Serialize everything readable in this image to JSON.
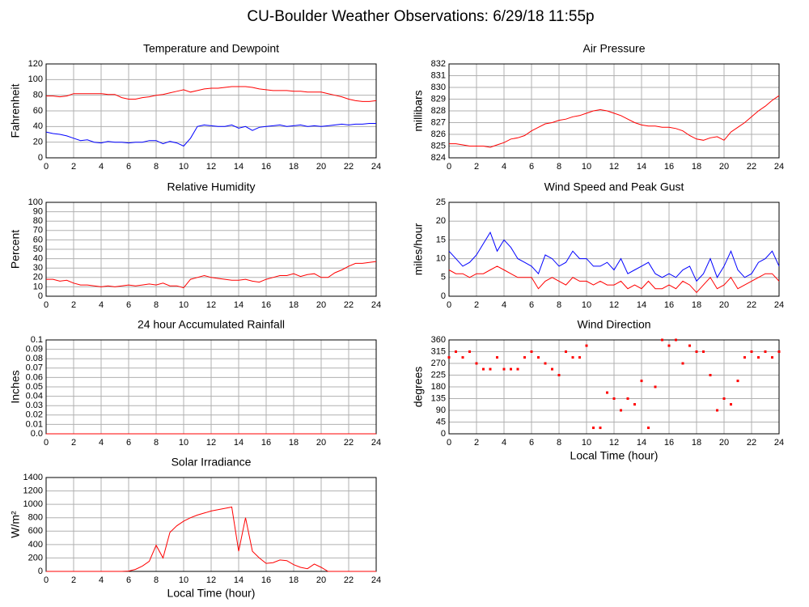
{
  "title": "CU-Boulder Weather Observations: 6/29/18 11:55p",
  "chart_data": [
    {
      "type": "line",
      "title": "Temperature and Dewpoint",
      "ylabel": "Fahrenheit",
      "x": [
        0,
        0.5,
        1,
        1.5,
        2,
        2.5,
        3,
        3.5,
        4,
        4.5,
        5,
        5.5,
        6,
        6.5,
        7,
        7.5,
        8,
        8.5,
        9,
        9.5,
        10,
        10.5,
        11,
        11.5,
        12,
        12.5,
        13,
        13.5,
        14,
        14.5,
        15,
        15.5,
        16,
        16.5,
        17,
        17.5,
        18,
        18.5,
        19,
        19.5,
        20,
        20.5,
        21,
        21.5,
        22,
        22.5,
        23,
        23.5,
        24
      ],
      "xlim": [
        0,
        24
      ],
      "xticks": [
        0,
        2,
        4,
        6,
        8,
        10,
        12,
        14,
        16,
        18,
        20,
        22,
        24
      ],
      "ylim": [
        0,
        120
      ],
      "yticks": [
        0,
        20,
        40,
        60,
        80,
        100,
        120
      ],
      "grid": true,
      "series": [
        {
          "color": "#ff0000",
          "values": [
            79,
            79,
            78,
            79,
            82,
            82,
            82,
            82,
            82,
            81,
            81,
            77,
            75,
            75,
            77,
            78,
            80,
            81,
            83,
            85,
            87,
            84,
            86,
            88,
            89,
            89,
            90,
            91,
            91,
            91,
            90,
            88,
            87,
            86,
            86,
            86,
            85,
            85,
            84,
            84,
            84,
            82,
            80,
            78,
            75,
            73,
            72,
            72,
            73
          ]
        },
        {
          "color": "#0000ff",
          "values": [
            33,
            31,
            30,
            28,
            25,
            22,
            23,
            20,
            19,
            21,
            20,
            20,
            19,
            20,
            20,
            22,
            22,
            18,
            21,
            19,
            15,
            25,
            40,
            42,
            41,
            40,
            40,
            42,
            38,
            40,
            35,
            39,
            40,
            41,
            42,
            40,
            41,
            42,
            40,
            41,
            40,
            41,
            42,
            43,
            42,
            43,
            43,
            44,
            44
          ]
        }
      ]
    },
    {
      "type": "line",
      "title": "Air Pressure",
      "ylabel": "millibars",
      "x": [
        0,
        0.5,
        1,
        1.5,
        2,
        2.5,
        3,
        3.5,
        4,
        4.5,
        5,
        5.5,
        6,
        6.5,
        7,
        7.5,
        8,
        8.5,
        9,
        9.5,
        10,
        10.5,
        11,
        11.5,
        12,
        12.5,
        13,
        13.5,
        14,
        14.5,
        15,
        15.5,
        16,
        16.5,
        17,
        17.5,
        18,
        18.5,
        19,
        19.5,
        20,
        20.5,
        21,
        21.5,
        22,
        22.5,
        23,
        23.5,
        24
      ],
      "xlim": [
        0,
        24
      ],
      "xticks": [
        0,
        2,
        4,
        6,
        8,
        10,
        12,
        14,
        16,
        18,
        20,
        22,
        24
      ],
      "ylim": [
        824,
        832
      ],
      "yticks": [
        824,
        825,
        826,
        827,
        828,
        829,
        830,
        831,
        832
      ],
      "grid": true,
      "series": [
        {
          "color": "#ff0000",
          "values": [
            825.2,
            825.2,
            825.1,
            825.0,
            825.0,
            825.0,
            824.9,
            825.1,
            825.3,
            825.6,
            825.7,
            825.9,
            826.3,
            826.6,
            826.9,
            827.0,
            827.2,
            827.3,
            827.5,
            827.6,
            827.8,
            828.0,
            828.1,
            828.0,
            827.8,
            827.6,
            827.3,
            827.0,
            826.8,
            826.7,
            826.7,
            826.6,
            826.6,
            826.5,
            826.3,
            825.9,
            825.6,
            825.5,
            825.7,
            825.8,
            825.5,
            826.2,
            826.6,
            827.0,
            827.5,
            828.0,
            828.4,
            828.9,
            829.3
          ]
        }
      ]
    },
    {
      "type": "line",
      "title": "Relative Humidity",
      "ylabel": "Percent",
      "x": [
        0,
        0.5,
        1,
        1.5,
        2,
        2.5,
        3,
        3.5,
        4,
        4.5,
        5,
        5.5,
        6,
        6.5,
        7,
        7.5,
        8,
        8.5,
        9,
        9.5,
        10,
        10.5,
        11,
        11.5,
        12,
        12.5,
        13,
        13.5,
        14,
        14.5,
        15,
        15.5,
        16,
        16.5,
        17,
        17.5,
        18,
        18.5,
        19,
        19.5,
        20,
        20.5,
        21,
        21.5,
        22,
        22.5,
        23,
        23.5,
        24
      ],
      "xlim": [
        0,
        24
      ],
      "xticks": [
        0,
        2,
        4,
        6,
        8,
        10,
        12,
        14,
        16,
        18,
        20,
        22,
        24
      ],
      "ylim": [
        0,
        100
      ],
      "yticks": [
        0,
        10,
        20,
        30,
        40,
        50,
        60,
        70,
        80,
        90,
        100
      ],
      "grid": true,
      "series": [
        {
          "color": "#ff0000",
          "values": [
            18,
            18,
            16,
            17,
            14,
            12,
            12,
            11,
            10,
            11,
            10,
            11,
            12,
            11,
            12,
            13,
            12,
            14,
            11,
            11,
            9,
            18,
            20,
            22,
            20,
            19,
            18,
            17,
            17,
            18,
            16,
            15,
            18,
            20,
            22,
            22,
            24,
            21,
            23,
            24,
            20,
            20,
            25,
            28,
            32,
            35,
            35,
            36,
            37
          ]
        }
      ]
    },
    {
      "type": "line",
      "title": "Wind Speed and Peak Gust",
      "ylabel": "miles/hour",
      "x": [
        0,
        0.5,
        1,
        1.5,
        2,
        2.5,
        3,
        3.5,
        4,
        4.5,
        5,
        5.5,
        6,
        6.5,
        7,
        7.5,
        8,
        8.5,
        9,
        9.5,
        10,
        10.5,
        11,
        11.5,
        12,
        12.5,
        13,
        13.5,
        14,
        14.5,
        15,
        15.5,
        16,
        16.5,
        17,
        17.5,
        18,
        18.5,
        19,
        19.5,
        20,
        20.5,
        21,
        21.5,
        22,
        22.5,
        23,
        23.5,
        24
      ],
      "xlim": [
        0,
        24
      ],
      "xticks": [
        0,
        2,
        4,
        6,
        8,
        10,
        12,
        14,
        16,
        18,
        20,
        22,
        24
      ],
      "ylim": [
        0,
        25
      ],
      "yticks": [
        0,
        5,
        10,
        15,
        20,
        25
      ],
      "grid": true,
      "series": [
        {
          "color": "#0000ff",
          "values": [
            12,
            10,
            8,
            9,
            11,
            14,
            17,
            12,
            15,
            13,
            10,
            9,
            8,
            6,
            11,
            10,
            8,
            9,
            12,
            10,
            10,
            8,
            8,
            9,
            7,
            10,
            6,
            7,
            8,
            9,
            6,
            5,
            6,
            5,
            7,
            8,
            4,
            6,
            10,
            5,
            8,
            12,
            7,
            5,
            6,
            9,
            10,
            12,
            8
          ]
        },
        {
          "color": "#ff0000",
          "values": [
            7,
            6,
            6,
            5,
            6,
            6,
            7,
            8,
            7,
            6,
            5,
            5,
            5,
            2,
            4,
            5,
            4,
            3,
            5,
            4,
            4,
            3,
            4,
            3,
            3,
            4,
            2,
            3,
            2,
            4,
            2,
            2,
            3,
            2,
            4,
            3,
            1,
            3,
            5,
            2,
            3,
            5,
            2,
            3,
            4,
            5,
            6,
            6,
            4
          ]
        }
      ]
    },
    {
      "type": "line",
      "title": "24 hour Accumulated Rainfall",
      "ylabel": "Inches",
      "x": [
        0,
        24
      ],
      "xlim": [
        0,
        24
      ],
      "xticks": [
        0,
        2,
        4,
        6,
        8,
        10,
        12,
        14,
        16,
        18,
        20,
        22,
        24
      ],
      "ylim": [
        0,
        0.1
      ],
      "yticks": [
        {
          "value": 0,
          "label": "0.0"
        },
        0.01,
        0.02,
        0.03,
        0.04,
        0.05,
        0.06,
        0.07,
        0.08,
        0.09,
        0.1
      ],
      "grid": true,
      "series": [
        {
          "color": "#ff0000",
          "values": [
            0,
            0
          ]
        }
      ]
    },
    {
      "type": "scatter",
      "title": "Wind Direction",
      "ylabel": "degrees",
      "xlabel": "Local Time (hour)",
      "x": [
        0,
        0.5,
        1,
        1.5,
        2,
        2.5,
        3,
        3.5,
        4,
        4.5,
        5,
        5.5,
        6,
        6.5,
        7,
        7.5,
        8,
        8.5,
        9,
        9.5,
        10,
        10.5,
        11,
        11.5,
        12,
        12.5,
        13,
        13.5,
        14,
        14.5,
        15,
        15.5,
        16,
        16.5,
        17,
        17.5,
        18,
        18.5,
        19,
        19.5,
        20,
        20.5,
        21,
        21.5,
        22,
        22.5,
        23,
        23.5,
        24
      ],
      "xlim": [
        0,
        24
      ],
      "xticks": [
        0,
        2,
        4,
        6,
        8,
        10,
        12,
        14,
        16,
        18,
        20,
        22,
        24
      ],
      "ylim": [
        0,
        360
      ],
      "yticks": [
        0,
        45,
        90,
        135,
        180,
        225,
        270,
        315,
        360
      ],
      "grid": true,
      "series": [
        {
          "color": "#ff0000",
          "values": [
            293,
            315,
            293,
            315,
            270,
            248,
            248,
            293,
            248,
            248,
            248,
            293,
            315,
            293,
            270,
            248,
            225,
            315,
            293,
            293,
            338,
            23,
            23,
            158,
            135,
            90,
            135,
            113,
            203,
            23,
            180,
            360,
            338,
            360,
            270,
            338,
            315,
            315,
            225,
            90,
            135,
            113,
            203,
            293,
            315,
            293,
            315,
            293,
            315
          ]
        }
      ]
    },
    {
      "type": "line",
      "title": "Solar Irradiance",
      "ylabel": "W/m²",
      "xlabel": "Local Time (hour)",
      "x": [
        0,
        0.5,
        1,
        1.5,
        2,
        2.5,
        3,
        3.5,
        4,
        4.5,
        5,
        5.5,
        6,
        6.5,
        7,
        7.5,
        8,
        8.5,
        9,
        9.5,
        10,
        10.5,
        11,
        11.5,
        12,
        12.5,
        13,
        13.5,
        14,
        14.5,
        15,
        15.5,
        16,
        16.5,
        17,
        17.5,
        18,
        18.5,
        19,
        19.5,
        20,
        20.5,
        21,
        21.5,
        22,
        22.5,
        23,
        23.5,
        24
      ],
      "xlim": [
        0,
        24
      ],
      "xticks": [
        0,
        2,
        4,
        6,
        8,
        10,
        12,
        14,
        16,
        18,
        20,
        22,
        24
      ],
      "ylim": [
        0,
        1400
      ],
      "yticks": [
        0,
        200,
        400,
        600,
        800,
        1000,
        1200,
        1400
      ],
      "grid": true,
      "series": [
        {
          "color": "#ff0000",
          "values": [
            0,
            0,
            0,
            0,
            0,
            0,
            0,
            0,
            0,
            0,
            0,
            0,
            5,
            30,
            80,
            150,
            390,
            200,
            580,
            680,
            750,
            800,
            840,
            870,
            900,
            920,
            940,
            960,
            300,
            800,
            300,
            200,
            120,
            130,
            170,
            160,
            100,
            60,
            40,
            110,
            60,
            0,
            0,
            0,
            0,
            0,
            0,
            0,
            0
          ]
        }
      ]
    }
  ]
}
